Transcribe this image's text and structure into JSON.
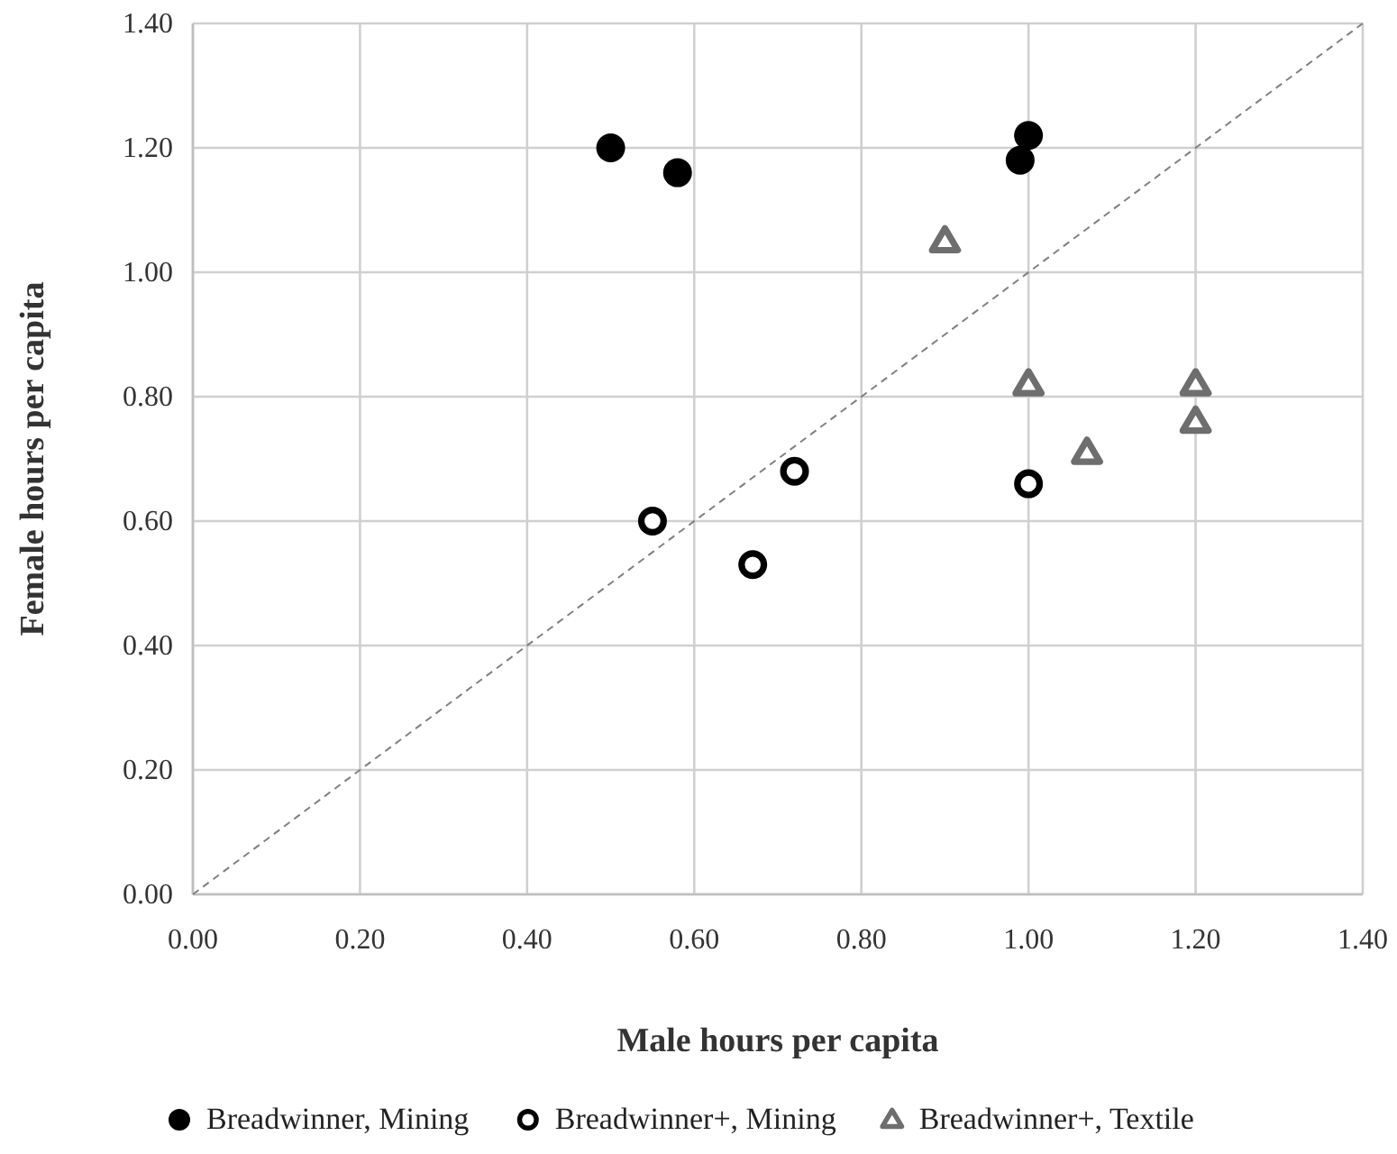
{
  "chart_data": {
    "type": "scatter",
    "xlabel": "Male hours per capita",
    "ylabel": "Female hours per capita",
    "xlim": [
      0,
      1.4
    ],
    "ylim": [
      0,
      1.4
    ],
    "xticks": [
      {
        "value": 0,
        "label": "0.00"
      },
      {
        "value": 0.2,
        "label": "0.20"
      },
      {
        "value": 0.4,
        "label": "0.40"
      },
      {
        "value": 0.6,
        "label": "0.60"
      },
      {
        "value": 0.8,
        "label": "0.80"
      },
      {
        "value": 1,
        "label": "1.00"
      },
      {
        "value": 1.2,
        "label": "1.20"
      },
      {
        "value": 1.4,
        "label": "1.40"
      }
    ],
    "yticks": [
      {
        "value": 0,
        "label": "0.00"
      },
      {
        "value": 0.2,
        "label": "0.20"
      },
      {
        "value": 0.4,
        "label": "0.40"
      },
      {
        "value": 0.6,
        "label": "0.60"
      },
      {
        "value": 0.8,
        "label": "0.80"
      },
      {
        "value": 1,
        "label": "1.00"
      },
      {
        "value": 1.2,
        "label": "1.20"
      },
      {
        "value": 1.4,
        "label": "1.40"
      }
    ],
    "grid": true,
    "legend": "bottom",
    "series": [
      {
        "name": "Breadwinner, Mining",
        "color": "#000000",
        "marker": "circle",
        "x": [
          0.5,
          0.58,
          1.0,
          0.99
        ],
        "values": [
          1.2,
          1.16,
          1.22,
          1.18
        ]
      },
      {
        "name": "Breadwinner+, Mining",
        "color": "#000000",
        "marker": "circle",
        "x": [
          0.55,
          0.67,
          0.72,
          1.0
        ],
        "values": [
          0.6,
          0.53,
          0.68,
          0.66
        ]
      },
      {
        "name": "Breadwinner+, Textile",
        "color": "#6e6e6e",
        "marker": "triangle",
        "x": [
          0.9,
          1.0,
          1.07,
          1.2,
          1.2
        ],
        "values": [
          1.05,
          0.82,
          0.71,
          0.82,
          0.76
        ]
      },
      {
        "type": "line",
        "color": "#808080",
        "marker": "none",
        "line_style": "dashed",
        "x": [
          0,
          1.4
        ],
        "values": [
          0,
          1.4
        ]
      }
    ]
  }
}
